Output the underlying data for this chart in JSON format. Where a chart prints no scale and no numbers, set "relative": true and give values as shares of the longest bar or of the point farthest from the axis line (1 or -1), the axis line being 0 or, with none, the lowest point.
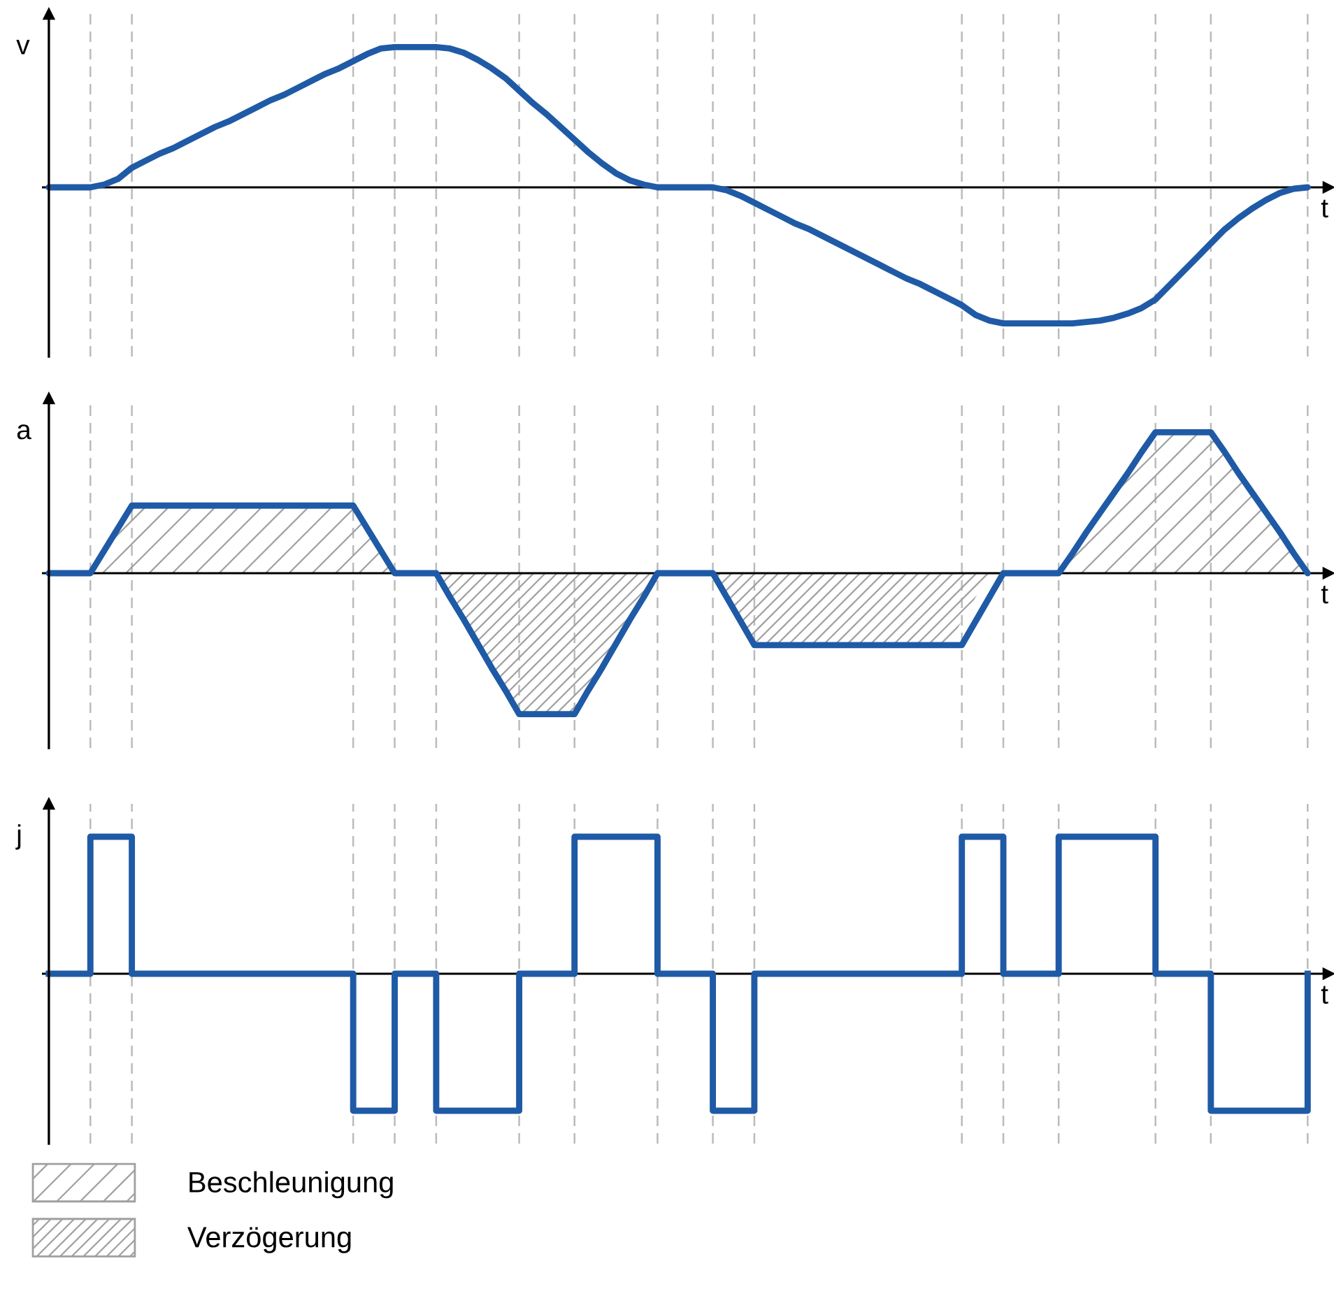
{
  "chart_data": [
    {
      "type": "line",
      "ylabel": "v",
      "xlabel": "t",
      "relative": true,
      "grid": "x",
      "line_style": "solid",
      "categories": [
        null,
        null,
        null,
        null,
        null,
        null,
        null,
        null,
        null,
        null,
        null,
        null,
        null,
        null,
        null,
        null,
        null,
        null,
        null,
        null,
        null,
        null,
        null,
        null,
        null,
        null,
        null,
        null,
        null,
        null,
        null,
        null,
        null,
        null,
        null,
        null,
        null,
        null,
        null,
        null,
        null,
        null,
        null,
        null,
        null,
        null,
        null,
        null,
        null,
        null,
        null,
        null,
        null,
        null,
        null,
        null,
        null,
        null,
        null,
        null,
        null,
        null,
        null,
        null,
        null,
        null,
        null,
        null,
        null,
        null,
        null,
        null,
        null,
        null,
        null,
        null,
        null,
        null,
        null,
        null,
        null,
        null,
        null,
        null,
        null,
        null,
        null,
        null,
        null,
        null,
        null,
        null,
        null
      ],
      "series": [
        {
          "color": "#1f5aa6",
          "values": [
            0,
            0,
            0,
            0,
            0.02,
            0.06,
            0.14,
            0.19,
            0.24,
            0.28,
            0.33,
            0.38,
            0.43,
            0.47,
            0.52,
            0.57,
            0.62,
            0.66,
            0.71,
            0.76,
            0.81,
            0.85,
            0.9,
            0.95,
            0.99,
            1,
            1,
            1,
            1,
            0.99,
            0.96,
            0.91,
            0.85,
            0.78,
            0.69,
            0.6,
            0.52,
            0.43,
            0.34,
            0.25,
            0.17,
            0.1,
            0.05,
            0.02,
            0,
            0,
            0,
            0,
            0,
            -0.02,
            -0.06,
            -0.11,
            -0.16,
            -0.21,
            -0.26,
            -0.3,
            -0.35,
            -0.4,
            -0.45,
            -0.5,
            -0.55,
            -0.6,
            -0.65,
            -0.69,
            -0.74,
            -0.79,
            -0.84,
            -0.91,
            -0.95,
            -0.97,
            -0.97,
            -0.97,
            -0.97,
            -0.97,
            -0.97,
            -0.96,
            -0.95,
            -0.93,
            -0.9,
            -0.86,
            -0.8,
            -0.7,
            -0.6,
            -0.5,
            -0.4,
            -0.3,
            -0.22,
            -0.15,
            -0.09,
            -0.04,
            -0.01,
            0,
            null
          ]
        }
      ]
    },
    {
      "type": "line",
      "ylabel": "a",
      "xlabel": "t",
      "relative": true,
      "grid": "x",
      "line_style": "solid",
      "legend": "bottom",
      "categories": [
        null,
        null,
        null,
        null,
        null,
        null,
        null,
        null,
        null,
        null,
        null,
        null,
        null,
        null,
        null,
        null,
        null,
        null,
        null,
        null,
        null,
        null,
        null,
        null,
        null,
        null,
        null,
        null,
        null,
        null,
        null,
        null,
        null,
        null,
        null,
        null,
        null,
        null,
        null,
        null,
        null,
        null,
        null,
        null,
        null,
        null,
        null,
        null,
        null,
        null,
        null,
        null,
        null,
        null,
        null,
        null,
        null,
        null,
        null,
        null,
        null,
        null,
        null,
        null,
        null,
        null,
        null,
        null,
        null,
        null,
        null,
        null,
        null,
        null,
        null,
        null,
        null,
        null,
        null,
        null,
        null,
        null,
        null,
        null,
        null,
        null,
        null,
        null,
        null,
        null,
        null,
        null,
        null
      ],
      "series": [
        {
          "type": "area",
          "name": "Beschleunigung",
          "color": "#a0a0a0",
          "values": [
            null,
            null,
            null,
            0,
            0.16,
            0.32,
            0.48,
            0.48,
            0.48,
            0.48,
            0.48,
            0.48,
            0.48,
            0.48,
            0.48,
            0.48,
            0.48,
            0.48,
            0.48,
            0.48,
            0.48,
            0.48,
            0.48,
            0.32,
            0.16,
            0,
            null,
            null,
            null,
            null,
            null,
            null,
            null,
            null,
            null,
            null,
            null,
            null,
            null,
            null,
            null,
            null,
            null,
            null,
            null,
            null,
            null,
            null,
            null,
            null,
            null,
            null,
            null,
            null,
            null,
            null,
            null,
            null,
            null,
            null,
            null,
            null,
            null,
            null,
            null,
            null,
            null,
            null,
            null,
            null,
            null,
            null,
            null,
            0,
            0.14,
            0.29,
            0.43,
            0.57,
            0.71,
            0.86,
            1,
            1,
            1,
            1,
            1,
            0.86,
            0.71,
            0.57,
            0.43,
            0.29,
            0.14,
            0,
            null
          ]
        },
        {
          "type": "area",
          "name": "Verzögerung",
          "color": "#a0a0a0",
          "values": [
            null,
            null,
            null,
            null,
            null,
            null,
            null,
            null,
            null,
            null,
            null,
            null,
            null,
            null,
            null,
            null,
            null,
            null,
            null,
            null,
            null,
            null,
            null,
            null,
            null,
            null,
            null,
            null,
            0,
            -0.17,
            -0.33,
            -0.5,
            -0.67,
            -0.83,
            -1,
            -1,
            -1,
            -1,
            -1,
            -0.83,
            -0.67,
            -0.5,
            -0.33,
            -0.17,
            0,
            0,
            0,
            0,
            0,
            -0.17,
            -0.34,
            -0.51,
            -0.51,
            -0.51,
            -0.51,
            -0.51,
            -0.51,
            -0.51,
            -0.51,
            -0.51,
            -0.51,
            -0.51,
            -0.51,
            -0.51,
            -0.51,
            -0.51,
            -0.34,
            -0.17,
            0,
            null,
            null,
            null,
            null,
            null,
            null,
            null,
            null,
            null,
            null,
            null,
            null,
            null,
            null,
            null,
            null,
            null,
            null,
            null,
            null,
            null,
            null,
            null,
            null
          ]
        },
        {
          "color": "#1f5aa6",
          "values": [
            0,
            0,
            0,
            0,
            0.16,
            0.32,
            0.48,
            0.48,
            0.48,
            0.48,
            0.48,
            0.48,
            0.48,
            0.48,
            0.48,
            0.48,
            0.48,
            0.48,
            0.48,
            0.48,
            0.48,
            0.48,
            0.48,
            0.32,
            0.16,
            0,
            0,
            0,
            0,
            -0.17,
            -0.33,
            -0.5,
            -0.67,
            -0.83,
            -1,
            -1,
            -1,
            -1,
            -1,
            -0.83,
            -0.67,
            -0.5,
            -0.33,
            -0.17,
            0,
            0,
            0,
            0,
            0,
            -0.17,
            -0.34,
            -0.51,
            -0.51,
            -0.51,
            -0.51,
            -0.51,
            -0.51,
            -0.51,
            -0.51,
            -0.51,
            -0.51,
            -0.51,
            -0.51,
            -0.51,
            -0.51,
            -0.51,
            -0.51,
            -0.34,
            -0.17,
            0,
            0,
            0,
            0,
            0,
            0.14,
            0.29,
            0.43,
            0.57,
            0.71,
            0.86,
            1,
            1,
            1,
            1,
            1,
            0.86,
            0.71,
            0.57,
            0.43,
            0.29,
            0.14,
            0,
            null
          ]
        }
      ]
    },
    {
      "type": "step",
      "ylabel": "j",
      "xlabel": "t",
      "relative": true,
      "grid": "x",
      "line_style": "solid",
      "categories": [
        null,
        null,
        null,
        null,
        null,
        null,
        null,
        null,
        null,
        null,
        null,
        null,
        null,
        null,
        null,
        null,
        null,
        null,
        null,
        null,
        null,
        null,
        null,
        null,
        null,
        null,
        null,
        null,
        null,
        null,
        null,
        null,
        null,
        null,
        null,
        null,
        null,
        null,
        null,
        null,
        null,
        null,
        null,
        null,
        null,
        null,
        null,
        null,
        null,
        null,
        null,
        null,
        null,
        null,
        null,
        null,
        null,
        null,
        null,
        null,
        null,
        null,
        null,
        null,
        null,
        null,
        null,
        null,
        null,
        null,
        null,
        null,
        null,
        null,
        null,
        null,
        null,
        null,
        null,
        null,
        null,
        null,
        null,
        null,
        null,
        null,
        null,
        null,
        null,
        null,
        null,
        null,
        null
      ],
      "series": [
        {
          "color": "#1f5aa6",
          "values": [
            0,
            0,
            0,
            1,
            1,
            1,
            0,
            0,
            0,
            0,
            0,
            0,
            0,
            0,
            0,
            0,
            0,
            0,
            0,
            0,
            0,
            0,
            -1,
            -1,
            -1,
            0,
            0,
            0,
            -1,
            -1,
            -1,
            -1,
            -1,
            -1,
            0,
            0,
            0,
            0,
            1,
            1,
            1,
            1,
            1,
            1,
            0,
            0,
            0,
            0,
            -1,
            -1,
            -1,
            0,
            0,
            0,
            0,
            0,
            0,
            0,
            0,
            0,
            0,
            0,
            0,
            0,
            0,
            0,
            1,
            1,
            1,
            0,
            0,
            0,
            0,
            1,
            1,
            1,
            1,
            1,
            1,
            1,
            0,
            0,
            0,
            0,
            -1,
            -1,
            -1,
            -1,
            -1,
            -1,
            -1,
            0,
            null
          ]
        }
      ]
    }
  ]
}
